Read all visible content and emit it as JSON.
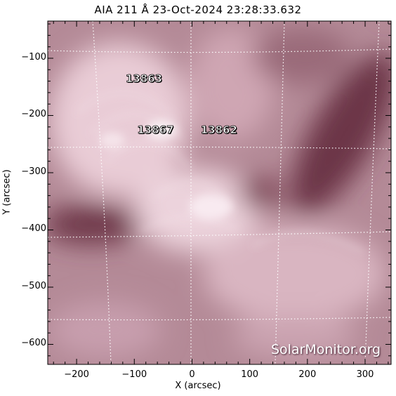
{
  "title": "AIA 211 Å 23-Oct-2024 23:28:33.632",
  "axes": {
    "xlabel": "X (arcsec)",
    "ylabel": "Y (arcsec)",
    "x_range": [
      -250,
      345
    ],
    "y_range": [
      -635,
      -35
    ],
    "x_ticks": [
      "−200",
      "−100",
      "0",
      "100",
      "200",
      "300"
    ],
    "y_ticks": [
      "−100",
      "−200",
      "−300",
      "−400",
      "−500",
      "−600"
    ]
  },
  "active_regions": [
    {
      "label": "13863",
      "x": -115,
      "y": -135
    },
    {
      "label": "13867",
      "x": -95,
      "y": -225
    },
    {
      "label": "13862",
      "x": 15,
      "y": -225
    }
  ],
  "watermark": "SolarMonitor.org",
  "colors": {
    "hot": "#f6e4ea",
    "mid": "#c49aa7",
    "dark": "#63303f",
    "grid": "#ffffff",
    "label": "#ffffff"
  }
}
